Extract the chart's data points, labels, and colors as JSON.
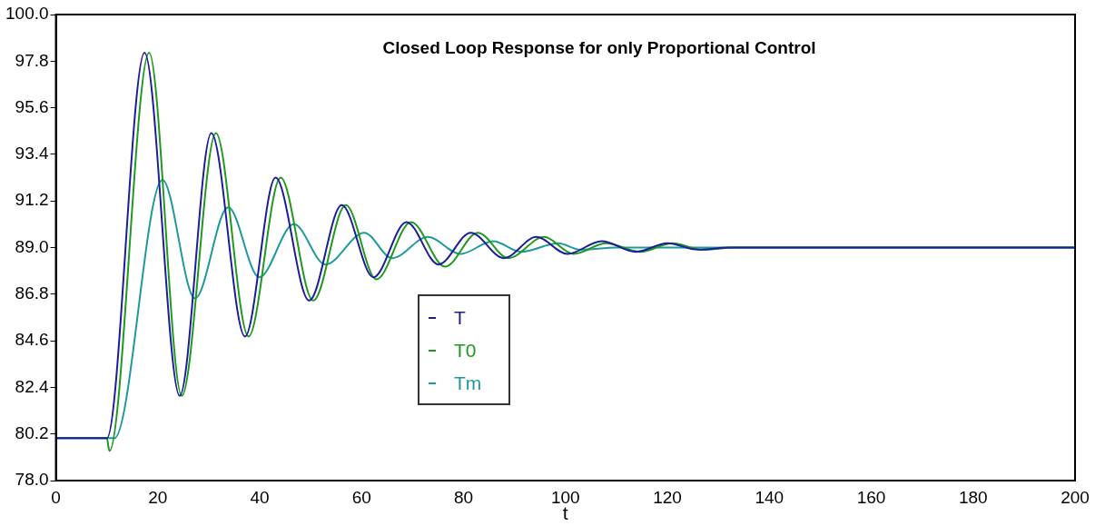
{
  "chart_data": {
    "type": "line",
    "title": "Closed Loop Response for only Proportional Control",
    "xlabel": "t",
    "xlim": [
      0,
      200
    ],
    "xticks": [
      0,
      20,
      40,
      60,
      80,
      100,
      120,
      140,
      160,
      180,
      200
    ],
    "ylim": [
      78,
      100
    ],
    "yticks": [
      {
        "value": 78,
        "label": "78.0"
      },
      {
        "value": 80.2,
        "label": "80.2"
      },
      {
        "value": 82.4,
        "label": "82.4"
      },
      {
        "value": 84.6,
        "label": "84.6"
      },
      {
        "value": 86.8,
        "label": "86.8"
      },
      {
        "value": 89,
        "label": "89.0"
      },
      {
        "value": 91.2,
        "label": "91.2"
      },
      {
        "value": 93.4,
        "label": "93.4"
      },
      {
        "value": 95.6,
        "label": "95.6"
      },
      {
        "value": 97.8,
        "label": "97.8"
      },
      {
        "value": 100,
        "label": "100.0"
      }
    ],
    "grid": false,
    "legend": "center",
    "marker": "none",
    "line_style": "solid",
    "series": [
      {
        "name": "T",
        "color": "#1c1c9c",
        "x": [
          0,
          10,
          17.4,
          24.3,
          30.5,
          37.1,
          43.1,
          49.7,
          56.1,
          62.3,
          68.8,
          75.1,
          81.4,
          87.9,
          94.3,
          100.4,
          107.1,
          113.8,
          120,
          126,
          132,
          200
        ],
        "values": [
          80.0,
          80.0,
          98.2,
          82.0,
          94.4,
          84.8,
          92.3,
          86.5,
          91.0,
          87.6,
          90.2,
          88.2,
          89.7,
          88.5,
          89.5,
          88.7,
          89.3,
          88.8,
          89.2,
          88.9,
          89.0,
          89.0
        ]
      },
      {
        "name": "T0",
        "color": "#1f9a1f",
        "x": [
          0,
          10,
          10.5,
          18.3,
          24.7,
          31.4,
          37.8,
          44.1,
          50.5,
          56.9,
          62.9,
          69.7,
          76.4,
          82.8,
          88.8,
          95.8,
          101.6,
          108,
          114.7,
          121,
          127,
          133,
          200
        ],
        "values": [
          80.0,
          80.0,
          79.4,
          98.2,
          82.0,
          94.4,
          84.8,
          92.3,
          86.5,
          91.0,
          87.5,
          90.2,
          88.1,
          89.7,
          88.5,
          89.5,
          88.7,
          89.2,
          88.8,
          89.2,
          88.9,
          89.0,
          89.0
        ]
      },
      {
        "name": "Tm",
        "color": "#1e9a9a",
        "x": [
          0,
          11.5,
          20.9,
          27.3,
          33.8,
          39.9,
          46.7,
          52.9,
          60.5,
          66.0,
          73.0,
          79.4,
          85.8,
          91.3,
          98.6,
          102.9,
          110,
          200
        ],
        "values": [
          80.0,
          80.0,
          92.2,
          86.6,
          90.9,
          87.6,
          90.1,
          88.2,
          89.7,
          88.5,
          89.5,
          88.7,
          89.3,
          88.8,
          89.2,
          88.9,
          89.0,
          89.0
        ]
      }
    ]
  }
}
